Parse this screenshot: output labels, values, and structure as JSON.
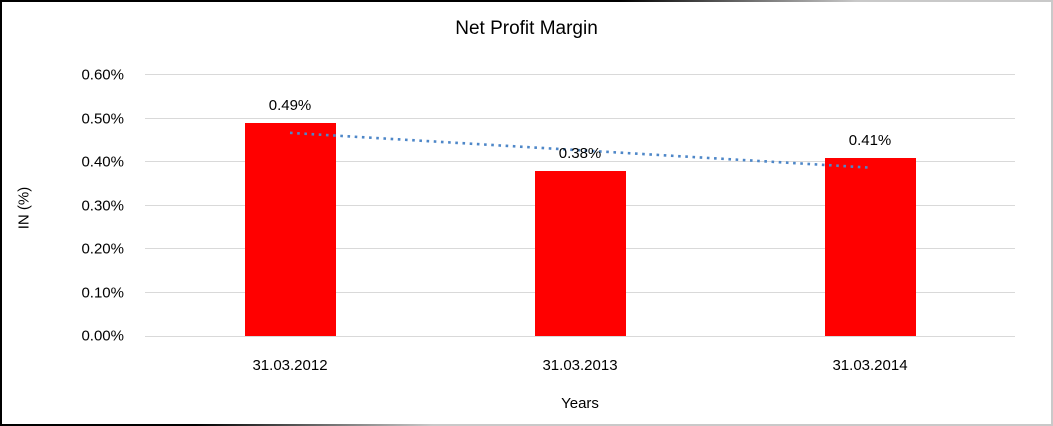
{
  "chart_data": {
    "type": "bar",
    "title": "Net Profit Margin",
    "categories": [
      "31.03.2012",
      "31.03.2013",
      "31.03.2014"
    ],
    "values": [
      0.49,
      0.38,
      0.41
    ],
    "value_labels": [
      "0.49%",
      "0.38%",
      "0.41%"
    ],
    "xlabel": "Years",
    "ylabel": "IN (%)",
    "ylim": [
      0,
      0.6
    ],
    "ytick_labels": [
      "0.00%",
      "0.10%",
      "0.20%",
      "0.30%",
      "0.40%",
      "0.50%",
      "0.60%"
    ],
    "grid": true,
    "legend_position": "none",
    "bar_color": "#ff0000",
    "gridline_color": "#d9d9d9",
    "axis_text_color": "#000000",
    "trendline": {
      "kind": "linear",
      "style": "dotted",
      "color": "#4e87c8",
      "start_value": 0.467,
      "end_value": 0.387
    }
  }
}
